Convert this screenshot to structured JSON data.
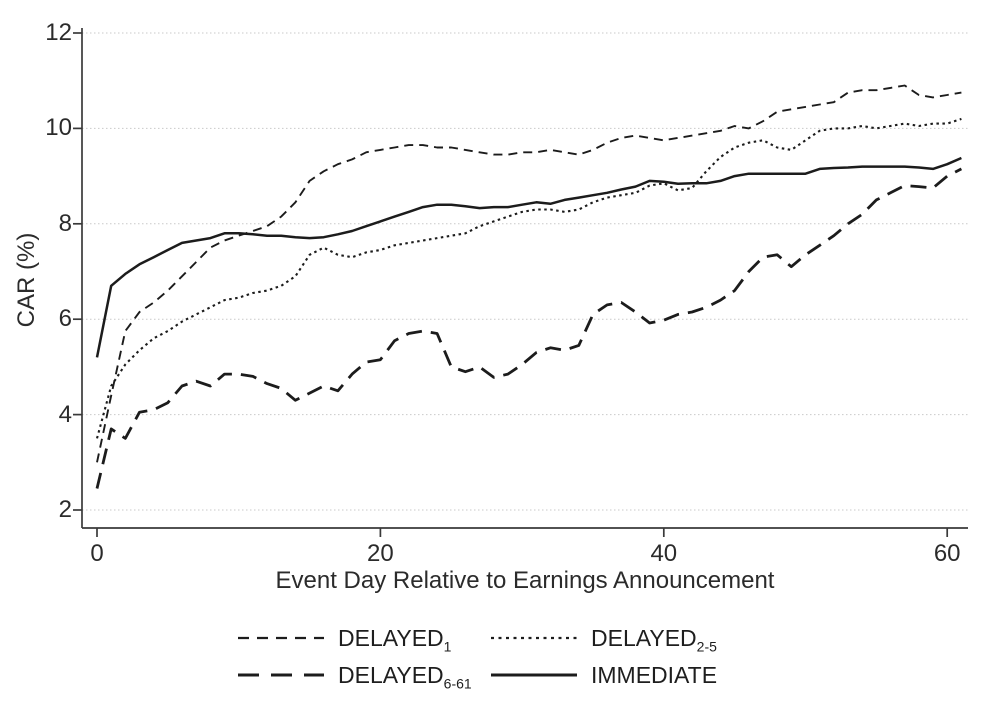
{
  "chart_data": {
    "type": "line",
    "xlabel": "Event Day Relative to Earnings Announcement",
    "ylabel": "CAR (%)",
    "xlim": [
      0,
      61
    ],
    "ylim": [
      2,
      12
    ],
    "xticks": [
      0,
      20,
      40,
      60
    ],
    "yticks": [
      2,
      4,
      6,
      8,
      10,
      12
    ],
    "grid": "horizontal-dotted",
    "grid_color": "#c9c9c9",
    "axis_color": "#3a3a3a",
    "line_color": "#1c1c1c",
    "legend_position": "bottom",
    "x": [
      0,
      1,
      2,
      3,
      4,
      5,
      6,
      7,
      8,
      9,
      10,
      11,
      12,
      13,
      14,
      15,
      16,
      17,
      18,
      19,
      20,
      21,
      22,
      23,
      24,
      25,
      26,
      27,
      28,
      29,
      30,
      31,
      32,
      33,
      34,
      35,
      36,
      37,
      38,
      39,
      40,
      41,
      42,
      43,
      44,
      45,
      46,
      47,
      48,
      49,
      50,
      51,
      52,
      53,
      54,
      55,
      56,
      57,
      58,
      59,
      60,
      61
    ],
    "series": [
      {
        "name": "DELAYED",
        "sub": "1",
        "id": "delayed-1",
        "line_style": "dashed",
        "values": [
          3.0,
          4.4,
          5.75,
          6.15,
          6.35,
          6.6,
          6.9,
          7.2,
          7.5,
          7.65,
          7.75,
          7.85,
          7.95,
          8.15,
          8.45,
          8.9,
          9.1,
          9.25,
          9.35,
          9.5,
          9.55,
          9.6,
          9.65,
          9.65,
          9.6,
          9.6,
          9.55,
          9.5,
          9.45,
          9.45,
          9.5,
          9.5,
          9.55,
          9.5,
          9.45,
          9.55,
          9.7,
          9.8,
          9.85,
          9.8,
          9.75,
          9.8,
          9.85,
          9.9,
          9.95,
          10.05,
          10.0,
          10.15,
          10.35,
          10.4,
          10.45,
          10.5,
          10.55,
          10.75,
          10.8,
          10.8,
          10.85,
          10.9,
          10.7,
          10.65,
          10.7,
          10.75
        ]
      },
      {
        "name": "DELAYED",
        "sub": "2-5",
        "id": "delayed-2-5",
        "line_style": "dotted",
        "values": [
          3.5,
          4.6,
          5.05,
          5.35,
          5.6,
          5.75,
          5.95,
          6.1,
          6.25,
          6.4,
          6.45,
          6.55,
          6.6,
          6.7,
          6.9,
          7.35,
          7.5,
          7.35,
          7.3,
          7.4,
          7.45,
          7.55,
          7.6,
          7.65,
          7.7,
          7.75,
          7.8,
          7.95,
          8.05,
          8.15,
          8.25,
          8.3,
          8.3,
          8.25,
          8.3,
          8.45,
          8.55,
          8.6,
          8.65,
          8.8,
          8.85,
          8.7,
          8.75,
          9.1,
          9.4,
          9.6,
          9.7,
          9.75,
          9.6,
          9.55,
          9.75,
          9.95,
          10.0,
          10.0,
          10.05,
          10.0,
          10.05,
          10.1,
          10.05,
          10.1,
          10.1,
          10.2
        ]
      },
      {
        "name": "DELAYED",
        "sub": "6-61",
        "id": "delayed-6-61",
        "line_style": "long-dash",
        "values": [
          2.45,
          3.7,
          3.5,
          4.05,
          4.1,
          4.25,
          4.6,
          4.7,
          4.6,
          4.85,
          4.85,
          4.8,
          4.65,
          4.55,
          4.3,
          4.45,
          4.6,
          4.5,
          4.85,
          5.1,
          5.15,
          5.55,
          5.7,
          5.75,
          5.7,
          5.0,
          4.9,
          5.0,
          4.78,
          4.85,
          5.05,
          5.3,
          5.4,
          5.35,
          5.45,
          6.1,
          6.3,
          6.35,
          6.15,
          5.92,
          5.98,
          6.1,
          6.15,
          6.25,
          6.4,
          6.6,
          7.0,
          7.3,
          7.35,
          7.1,
          7.35,
          7.55,
          7.75,
          8.0,
          8.2,
          8.5,
          8.65,
          8.8,
          8.78,
          8.75,
          9.0,
          9.15
        ]
      },
      {
        "name": "IMMEDIATE",
        "sub": "",
        "id": "immediate",
        "line_style": "solid",
        "values": [
          5.2,
          6.7,
          6.95,
          7.15,
          7.3,
          7.45,
          7.6,
          7.65,
          7.7,
          7.8,
          7.8,
          7.78,
          7.75,
          7.75,
          7.72,
          7.7,
          7.72,
          7.78,
          7.85,
          7.95,
          8.05,
          8.15,
          8.25,
          8.35,
          8.4,
          8.4,
          8.37,
          8.33,
          8.35,
          8.35,
          8.4,
          8.45,
          8.42,
          8.5,
          8.55,
          8.6,
          8.65,
          8.72,
          8.78,
          8.9,
          8.88,
          8.84,
          8.85,
          8.85,
          8.9,
          9.0,
          9.05,
          9.05,
          9.05,
          9.05,
          9.05,
          9.15,
          9.17,
          9.18,
          9.2,
          9.2,
          9.2,
          9.2,
          9.18,
          9.15,
          9.25,
          9.38
        ]
      }
    ]
  }
}
